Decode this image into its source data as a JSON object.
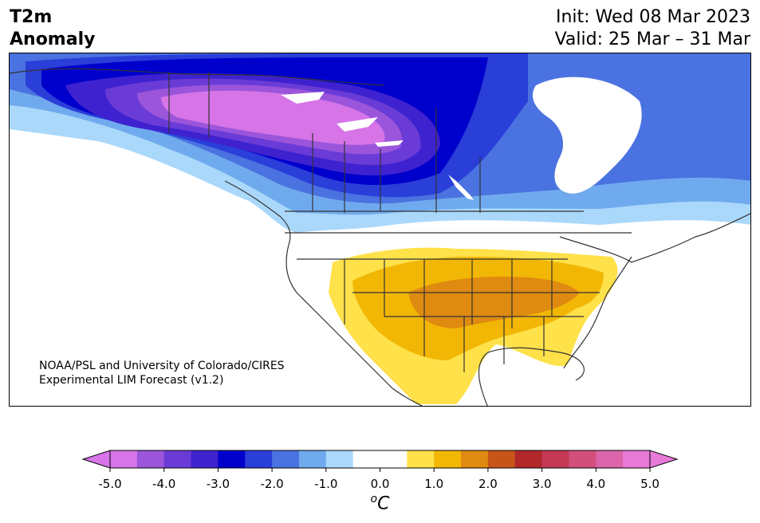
{
  "title": {
    "line1": "T2m",
    "line2": "Anomaly"
  },
  "info": {
    "init": "Init: Wed 08 Mar 2023",
    "valid": "Valid: 25 Mar – 31 Mar"
  },
  "credit": {
    "line1": "NOAA/PSL and University of Colorado/CIRES",
    "line2": "Experimental LIM Forecast (v1.2)"
  },
  "colorbar": {
    "colors": [
      "#d674e8",
      "#9b55db",
      "#6a3bd6",
      "#3f22cf",
      "#0000cd",
      "#2a3ed8",
      "#4a72e0",
      "#70aaee",
      "#aad8fb",
      "#ffffff",
      "#ffffff",
      "#ffe14a",
      "#f2b705",
      "#df8a10",
      "#c75518",
      "#b2272a",
      "#c43a55",
      "#d24f7c",
      "#db64aa",
      "#e87ad8"
    ],
    "tick_labels": [
      "-5.0",
      "-4.0",
      "-3.0",
      "-2.0",
      "-1.0",
      "0.0",
      "1.0",
      "2.0",
      "3.0",
      "4.0",
      "5.0"
    ],
    "unit_base": "C",
    "unit_sup": "o"
  },
  "map_colors": {
    "land_lines": "#333333",
    "cold_palette": [
      "#aad8fb",
      "#70aaee",
      "#4a72e0",
      "#2a3ed8",
      "#0000cd",
      "#3f22cf",
      "#6a3bd6",
      "#9b55db",
      "#d674e8"
    ],
    "warm_palette": [
      "#ffe14a",
      "#f2b705",
      "#df8a10"
    ]
  }
}
